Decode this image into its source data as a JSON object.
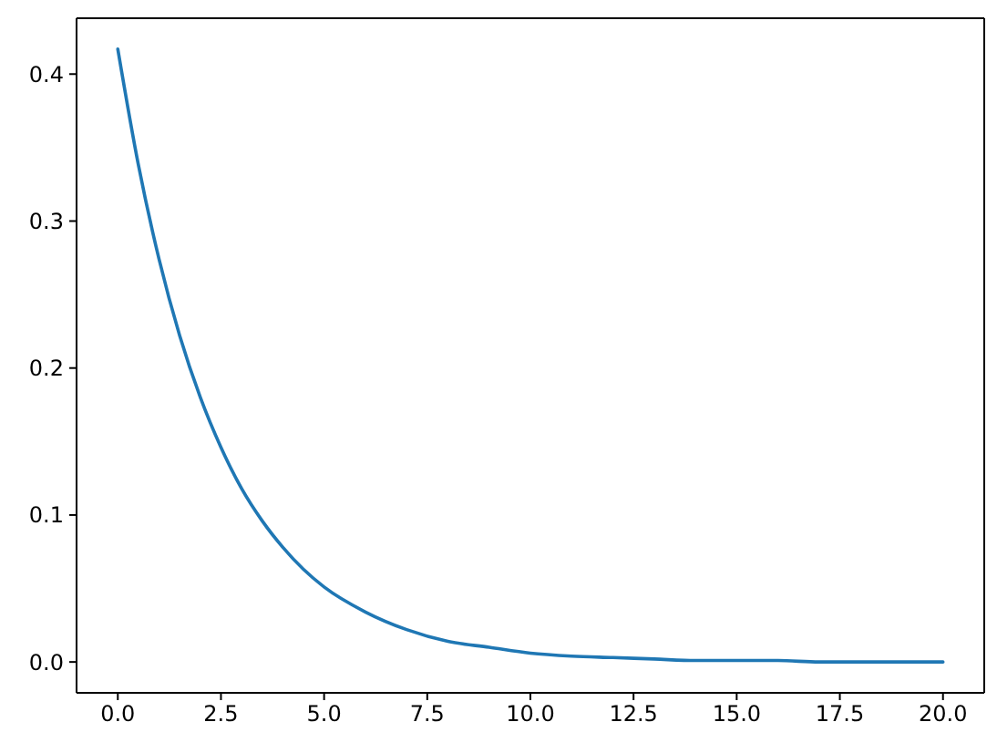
{
  "chart_data": {
    "type": "line",
    "color": "#1f77b4",
    "x": [
      0,
      0.5,
      1,
      1.5,
      2,
      2.5,
      3,
      3.5,
      4,
      4.5,
      5,
      6,
      7,
      8,
      9,
      10,
      11,
      12,
      13,
      14,
      15,
      16,
      17,
      18,
      19,
      20
    ],
    "values": [
      0.417,
      0.338,
      0.274,
      0.222,
      0.18,
      0.146,
      0.118,
      0.096,
      0.078,
      0.063,
      0.051,
      0.034,
      0.022,
      0.014,
      0.01,
      0.006,
      0.004,
      0.003,
      0.002,
      0.001,
      0.001,
      0.001,
      0,
      0,
      0,
      0
    ],
    "xlim": [
      -1,
      21
    ],
    "ylim": [
      -0.021,
      0.438
    ],
    "xticks": [
      {
        "value": 0,
        "label": "0.0"
      },
      2.5,
      {
        "value": 5,
        "label": "5.0"
      },
      7.5,
      {
        "value": 10,
        "label": "10.0"
      },
      12.5,
      {
        "value": 15,
        "label": "15.0"
      },
      17.5,
      {
        "value": 20,
        "label": "20.0"
      }
    ],
    "yticks": [
      {
        "value": 0,
        "label": "0.0"
      },
      0.1,
      0.2,
      0.3,
      0.4
    ]
  }
}
